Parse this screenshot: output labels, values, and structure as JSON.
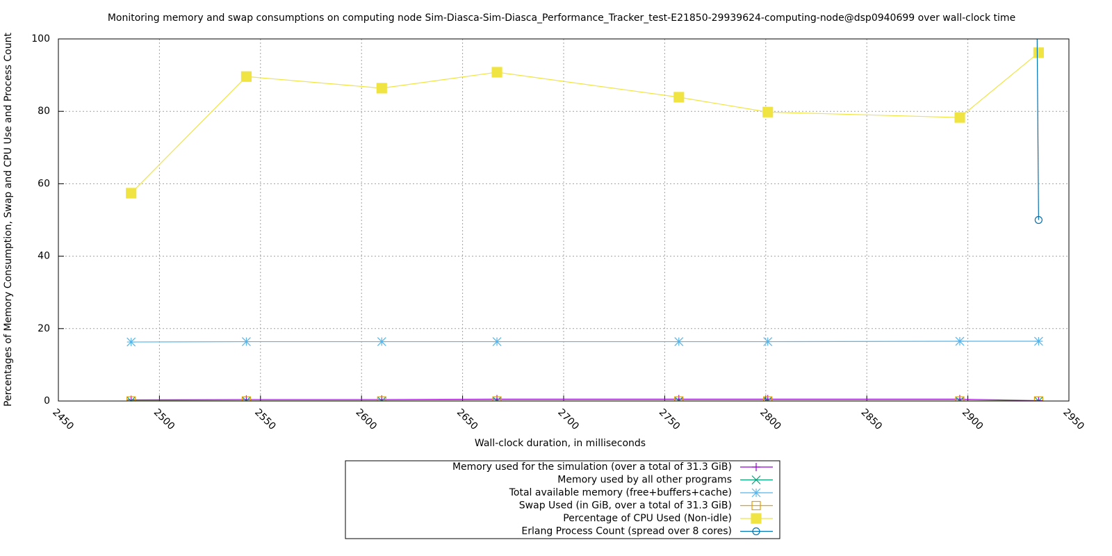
{
  "chart_data": {
    "type": "line",
    "title": "Monitoring memory and swap consumptions on computing node Sim-Diasca-Sim-Diasca_Performance_Tracker_test-E21850-29939624-computing-node@dsp0940699 over wall-clock time",
    "x_label": "Wall-clock duration, in milliseconds",
    "y_label": "Percentages of Memory Consumption, Swap and CPU Use and Process Count",
    "x": [
      2486,
      2543,
      2610,
      2667,
      2757,
      2801,
      2896,
      2935
    ],
    "series": [
      {
        "name": "Memory used for the simulation (over a total of 31.3 GiB)",
        "color": "#9400d3",
        "marker": "plus",
        "values": [
          0.3,
          0.4,
          0.4,
          0.5,
          0.5,
          0.5,
          0.5,
          0.1
        ]
      },
      {
        "name": "Memory used by all other programs",
        "color": "#009e73",
        "marker": "cross",
        "values": [
          0,
          0,
          0,
          0,
          0,
          0,
          0,
          0
        ]
      },
      {
        "name": "Total available memory (free+buffers+cache)",
        "color": "#56b4e9",
        "marker": "star",
        "values": [
          16.3,
          16.4,
          16.4,
          16.4,
          16.4,
          16.4,
          16.5,
          16.5
        ]
      },
      {
        "name": "Swap Used (in GiB, over a total of 31.3 GiB)",
        "color": "#e69f00",
        "marker": "square",
        "values": [
          0,
          0,
          0,
          0,
          0,
          0,
          0,
          0
        ]
      },
      {
        "name": "Percentage of CPU Used (Non-idle)",
        "color": "#f0e442",
        "marker": "filled-square",
        "values": [
          57.4,
          89.6,
          86.4,
          90.8,
          83.9,
          79.8,
          78.3,
          96.2
        ]
      },
      {
        "name": "Erlang Process Count (spread over 8 cores)",
        "color": "#0072b2",
        "marker": "circle",
        "x": [
          2934,
          2935
        ],
        "values": [
          120,
          50
        ]
      }
    ],
    "xlim": [
      2450,
      2950
    ],
    "xticks": [
      2450,
      2500,
      2550,
      2600,
      2650,
      2700,
      2750,
      2800,
      2850,
      2900,
      2950
    ],
    "ylim": [
      0,
      100
    ],
    "yticks": [
      0,
      20,
      40,
      60,
      80,
      100
    ],
    "grid": true,
    "legend": "bottom"
  }
}
